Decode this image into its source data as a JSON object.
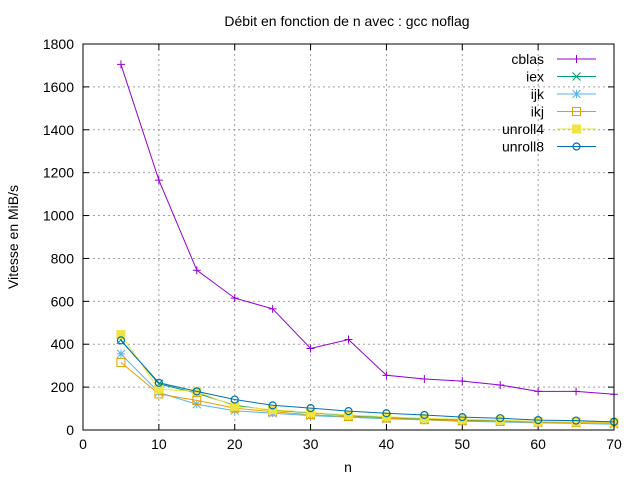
{
  "chart_data": {
    "type": "line",
    "title": "Débit en fonction de n avec :  gcc noflag",
    "xlabel": "n",
    "ylabel": "Vitesse en MiB/s",
    "xlim": [
      0,
      70
    ],
    "ylim": [
      0,
      1800
    ],
    "xticks": [
      0,
      10,
      20,
      30,
      40,
      50,
      60,
      70
    ],
    "yticks": [
      0,
      200,
      400,
      600,
      800,
      1000,
      1200,
      1400,
      1600,
      1800
    ],
    "grid": true,
    "legend_position": "top-right",
    "x": [
      5,
      10,
      15,
      20,
      25,
      30,
      35,
      40,
      45,
      50,
      55,
      60,
      65,
      70
    ],
    "series": [
      {
        "name": "cblas",
        "color": "#9400d3",
        "marker": "plus",
        "values": [
          1705,
          1165,
          745,
          615,
          565,
          380,
          422,
          255,
          238,
          228,
          210,
          180,
          180,
          167
        ]
      },
      {
        "name": "iex",
        "color": "#009e73",
        "marker": "cross",
        "values": [
          420,
          215,
          172,
          115,
          92,
          80,
          68,
          58,
          52,
          46,
          43,
          38,
          37,
          33
        ]
      },
      {
        "name": "ijk",
        "color": "#56b4e9",
        "marker": "star",
        "values": [
          355,
          175,
          120,
          90,
          78,
          67,
          60,
          52,
          47,
          41,
          38,
          33,
          31,
          27
        ]
      },
      {
        "name": "ikj",
        "color": "#e69f00",
        "marker": "square-open",
        "values": [
          315,
          168,
          138,
          102,
          85,
          72,
          63,
          56,
          48,
          43,
          40,
          37,
          35,
          34
        ]
      },
      {
        "name": "unroll4",
        "color": "#f0e442",
        "marker": "square-filled",
        "values": [
          445,
          190,
          180,
          110,
          95,
          82,
          70,
          62,
          55,
          50,
          46,
          40,
          38,
          36
        ]
      },
      {
        "name": "unroll8",
        "color": "#0072b2",
        "marker": "circle-open",
        "values": [
          418,
          220,
          180,
          142,
          115,
          102,
          88,
          78,
          70,
          60,
          55,
          46,
          44,
          38
        ]
      }
    ]
  }
}
